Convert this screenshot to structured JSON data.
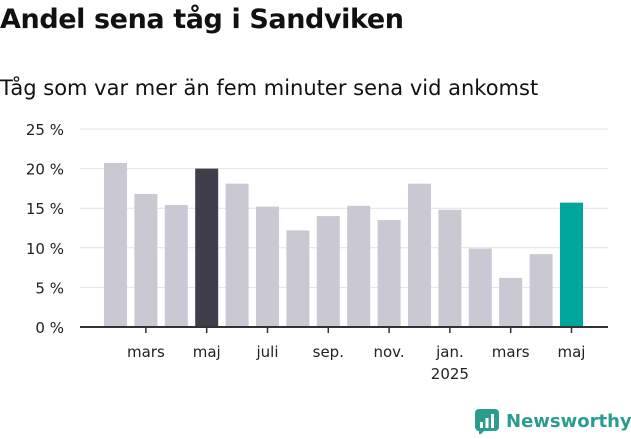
{
  "title": "Andel sena tåg i Sandviken",
  "subtitle": "Tåg som var mer än fem minuter sena vid ankomst",
  "brand": "Newsworthy",
  "colors": {
    "bar_default": "#c9c8d3",
    "bar_highlight_dark": "#403e4b",
    "bar_highlight_teal": "#00a59b",
    "brand": "#2a9d8f",
    "grid": "#e2e2e2",
    "axis": "#333333"
  },
  "chart_data": {
    "type": "bar",
    "title": "Andel sena tåg i Sandviken",
    "subtitle": "Tåg som var mer än fem minuter sena vid ankomst",
    "ylim": [
      0,
      25
    ],
    "yticks": [
      "0 %",
      "5 %",
      "10 %",
      "15 %",
      "20 %",
      "25 %"
    ],
    "ytick_values": [
      0,
      5,
      10,
      15,
      20,
      25
    ],
    "grid": true,
    "bars": [
      {
        "value": 20.7,
        "highlight": "none"
      },
      {
        "value": 16.8,
        "highlight": "none"
      },
      {
        "value": 15.4,
        "highlight": "none"
      },
      {
        "value": 20.0,
        "highlight": "dark"
      },
      {
        "value": 18.1,
        "highlight": "none"
      },
      {
        "value": 15.2,
        "highlight": "none"
      },
      {
        "value": 12.2,
        "highlight": "none"
      },
      {
        "value": 14.0,
        "highlight": "none"
      },
      {
        "value": 15.3,
        "highlight": "none"
      },
      {
        "value": 13.5,
        "highlight": "none"
      },
      {
        "value": 18.1,
        "highlight": "none"
      },
      {
        "value": 14.8,
        "highlight": "none"
      },
      {
        "value": 9.9,
        "highlight": "none"
      },
      {
        "value": 6.2,
        "highlight": "none"
      },
      {
        "value": 9.2,
        "highlight": "none"
      },
      {
        "value": 15.7,
        "highlight": "teal"
      }
    ],
    "xlabels": [
      {
        "bar_index": 1.5,
        "lines": [
          "mars"
        ]
      },
      {
        "bar_index": 3.5,
        "lines": [
          "maj"
        ]
      },
      {
        "bar_index": 5.5,
        "lines": [
          "juli"
        ]
      },
      {
        "bar_index": 7.5,
        "lines": [
          "sep."
        ]
      },
      {
        "bar_index": 9.5,
        "lines": [
          "nov."
        ]
      },
      {
        "bar_index": 11.5,
        "lines": [
          "jan.",
          "2025"
        ]
      },
      {
        "bar_index": 13.5,
        "lines": [
          "mars"
        ]
      },
      {
        "bar_index": 15.5,
        "lines": [
          "maj"
        ]
      }
    ]
  }
}
